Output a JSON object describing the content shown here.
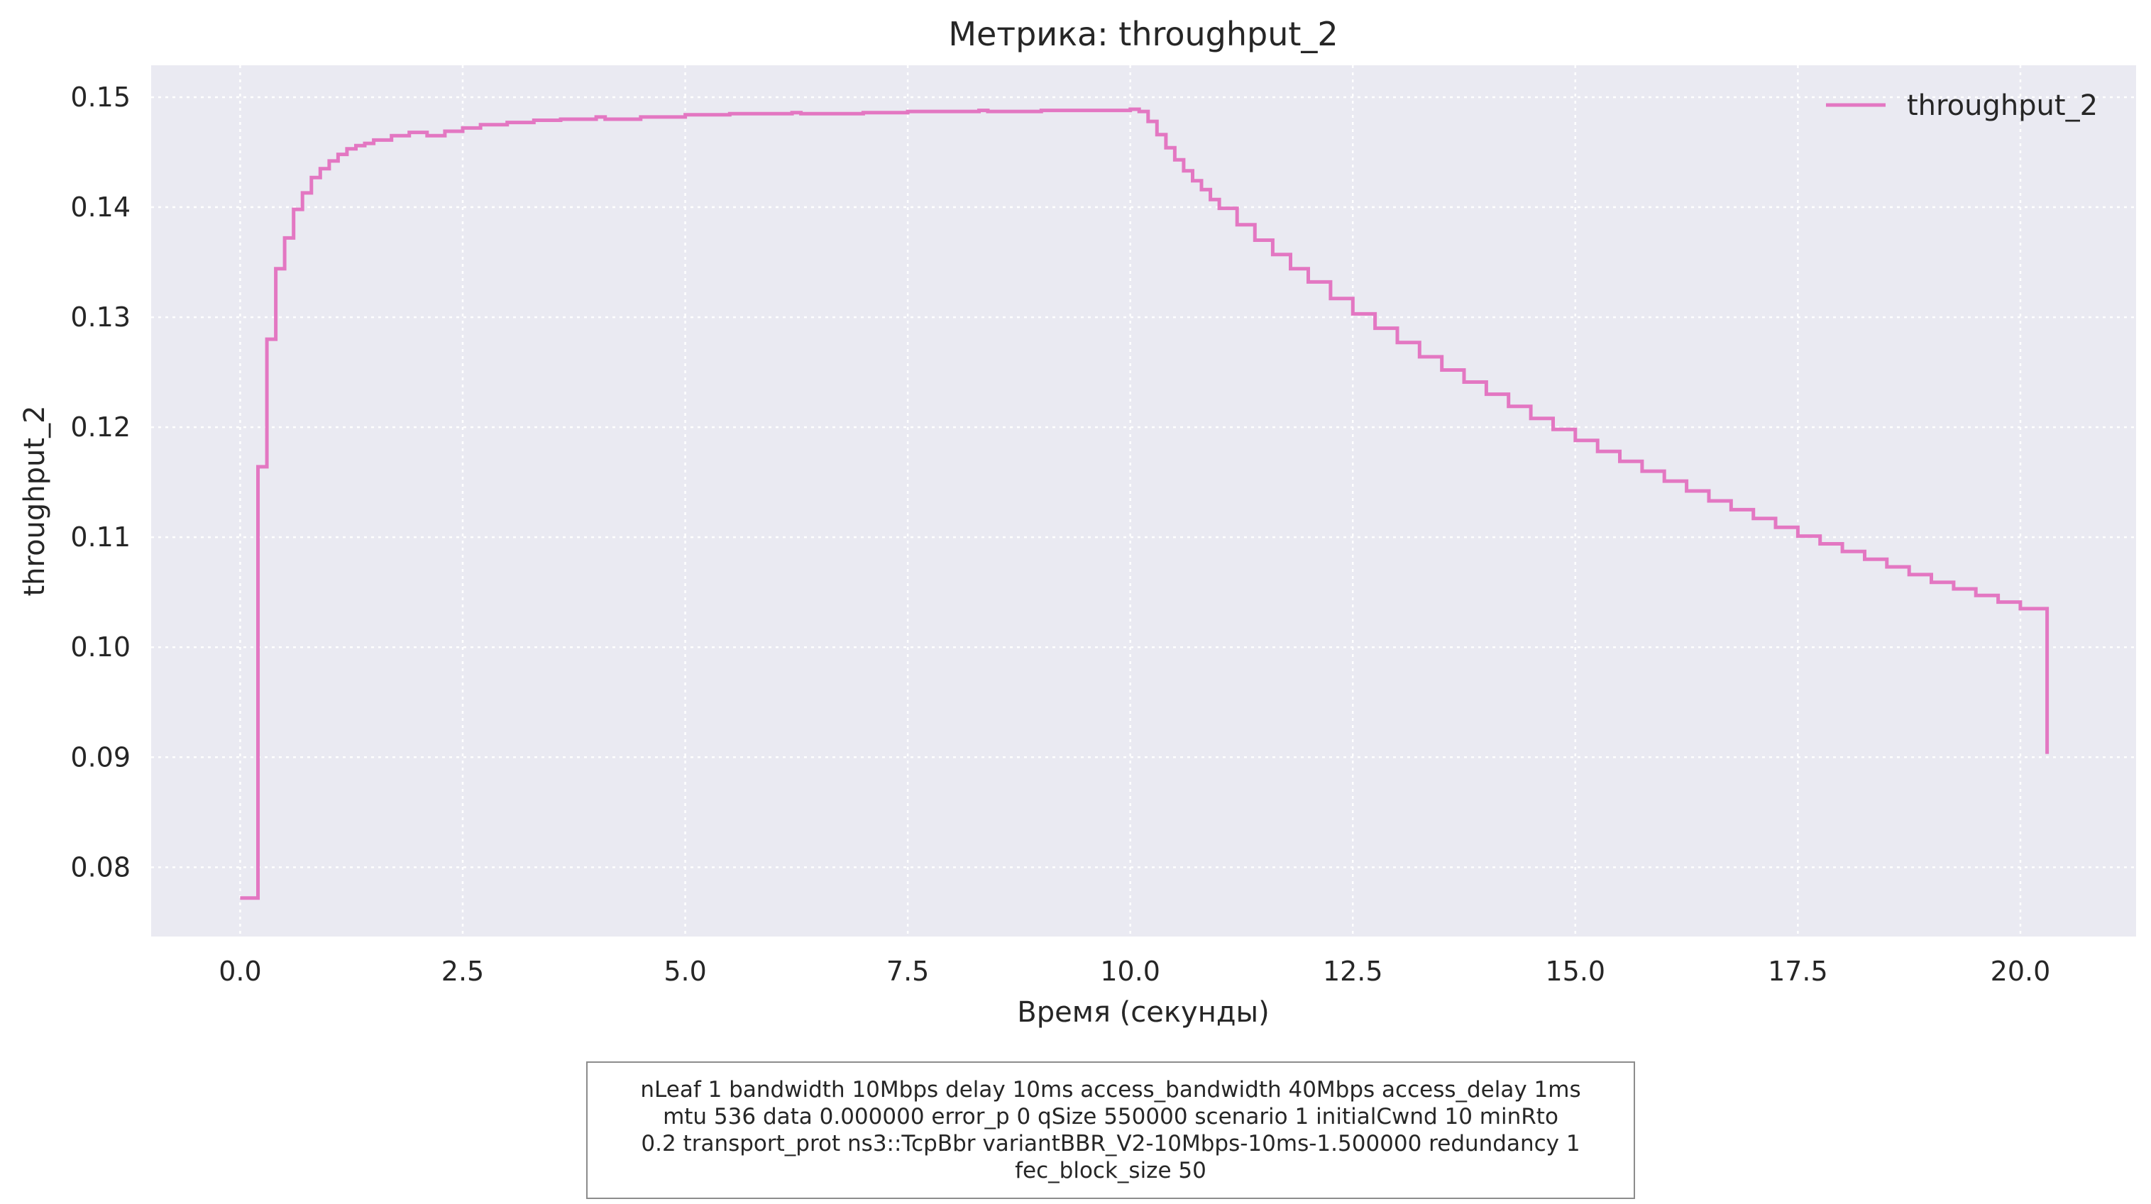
{
  "chart_data": {
    "type": "line",
    "title": "Метрика: throughput_2",
    "xlabel": "Время (секунды)",
    "ylabel": "throughput_2",
    "xlim": [
      -1.0,
      21.3
    ],
    "ylim": [
      0.0737,
      0.1529
    ],
    "x_ticks": [
      0.0,
      2.5,
      5.0,
      7.5,
      10.0,
      12.5,
      15.0,
      17.5,
      20.0
    ],
    "x_tick_labels": [
      "0.0",
      "2.5",
      "5.0",
      "7.5",
      "10.0",
      "12.5",
      "15.0",
      "17.5",
      "20.0"
    ],
    "y_ticks": [
      0.08,
      0.09,
      0.1,
      0.11,
      0.12,
      0.13,
      0.14,
      0.15
    ],
    "y_tick_labels": [
      "0.08",
      "0.09",
      "0.10",
      "0.11",
      "0.12",
      "0.13",
      "0.14",
      "0.15"
    ],
    "grid": true,
    "legend_position": "top-right",
    "step": true,
    "series": [
      {
        "name": "throughput_2",
        "color": "#e377c2",
        "x": [
          0.0,
          0.2,
          0.3,
          0.4,
          0.5,
          0.6,
          0.7,
          0.8,
          0.9,
          1.0,
          1.1,
          1.2,
          1.3,
          1.4,
          1.5,
          1.7,
          1.9,
          2.1,
          2.3,
          2.5,
          2.7,
          3.0,
          3.3,
          3.6,
          4.0,
          4.1,
          4.5,
          5.0,
          5.5,
          6.2,
          6.3,
          7.0,
          7.5,
          8.3,
          8.4,
          9.0,
          10.0,
          10.1,
          10.2,
          10.3,
          10.4,
          10.5,
          10.6,
          10.7,
          10.8,
          10.9,
          11.0,
          11.2,
          11.4,
          11.6,
          11.8,
          12.0,
          12.25,
          12.5,
          12.75,
          13.0,
          13.25,
          13.5,
          13.75,
          14.0,
          14.25,
          14.5,
          14.75,
          15.0,
          15.25,
          15.5,
          15.75,
          16.0,
          16.25,
          16.5,
          16.75,
          17.0,
          17.25,
          17.5,
          17.75,
          18.0,
          18.25,
          18.5,
          18.75,
          19.0,
          19.25,
          19.5,
          19.75,
          20.0,
          20.3
        ],
        "y": [
          0.0772,
          0.1164,
          0.128,
          0.1344,
          0.1372,
          0.1398,
          0.1413,
          0.1427,
          0.1435,
          0.1442,
          0.1448,
          0.1453,
          0.1456,
          0.1458,
          0.1461,
          0.1465,
          0.1468,
          0.1465,
          0.1469,
          0.1472,
          0.1475,
          0.1477,
          0.1479,
          0.148,
          0.1482,
          0.148,
          0.1482,
          0.1484,
          0.1485,
          0.1486,
          0.1485,
          0.1486,
          0.1487,
          0.1488,
          0.1487,
          0.1488,
          0.1489,
          0.1487,
          0.1478,
          0.1466,
          0.1454,
          0.1443,
          0.1433,
          0.1424,
          0.1416,
          0.1407,
          0.1399,
          0.1384,
          0.137,
          0.1357,
          0.1344,
          0.1332,
          0.1317,
          0.1303,
          0.129,
          0.1277,
          0.1264,
          0.1252,
          0.1241,
          0.123,
          0.1219,
          0.1208,
          0.1198,
          0.1188,
          0.1178,
          0.1169,
          0.116,
          0.1151,
          0.1142,
          0.1133,
          0.1125,
          0.1117,
          0.1109,
          0.1101,
          0.1094,
          0.1087,
          0.108,
          0.1073,
          0.1066,
          0.1059,
          0.1053,
          0.1047,
          0.1041,
          0.1035,
          0.0903
        ]
      }
    ]
  },
  "caption": "nLeaf 1 bandwidth 10Mbps delay  10ms access_bandwidth 40Mbps access_delay 1ms\nmtu 536 data  0.000000 error_p 0 qSize 550000 scenario 1 initialCwnd  10 minRto\n0.2 transport_prot ns3::TcpBbr variantBBR_V2-10Mbps-10ms-1.500000 redundancy 1\nfec_block_size 50"
}
